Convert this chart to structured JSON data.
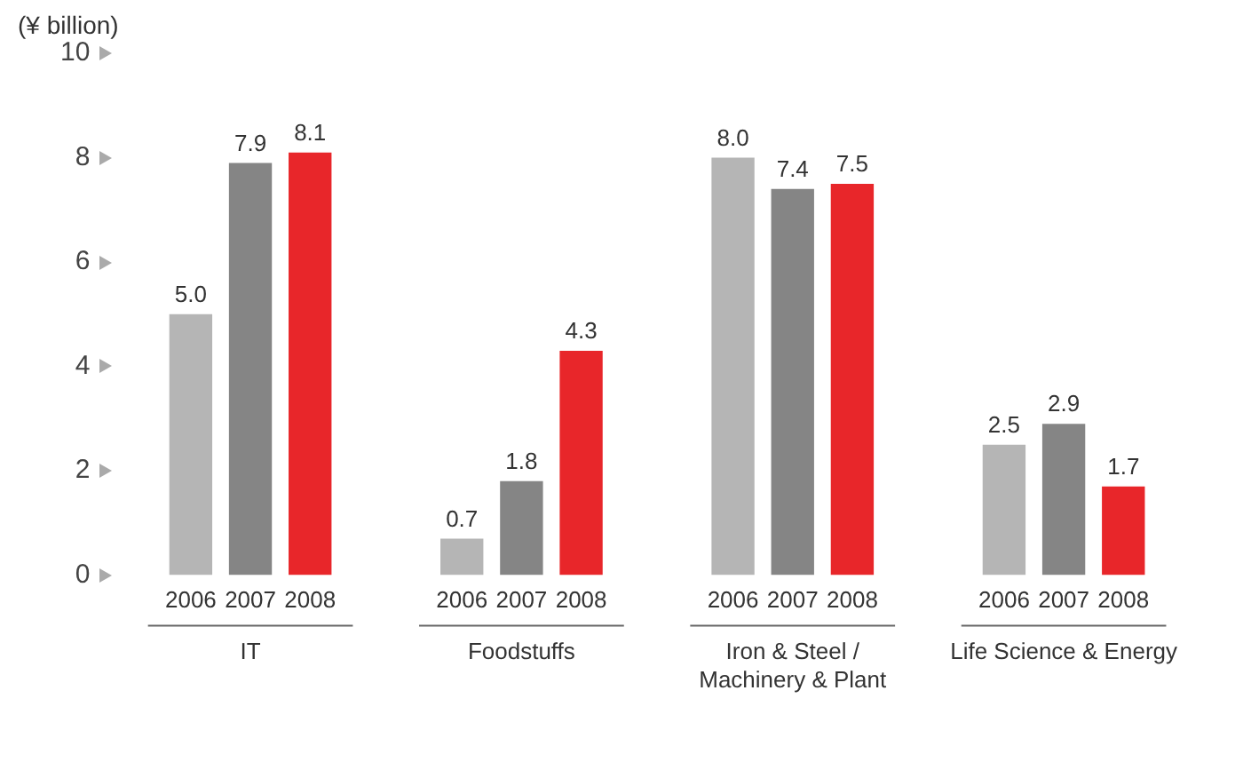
{
  "chart_data": {
    "type": "bar",
    "ylabel": "(¥ billion)",
    "categories": [
      "IT",
      "Foodstuffs",
      "Iron & Steel / Machinery & Plant",
      "Life Science & Energy"
    ],
    "series": [
      {
        "name": "2006",
        "color": "#b5b5b5",
        "values": [
          5.0,
          0.7,
          8.0,
          2.5
        ],
        "value_labels": [
          "5.0",
          "0.7",
          "8.0",
          "2.5"
        ]
      },
      {
        "name": "2007",
        "color": "#858585",
        "values": [
          7.9,
          1.8,
          7.4,
          2.9
        ],
        "value_labels": [
          "7.9",
          "1.8",
          "7.4",
          "2.9"
        ]
      },
      {
        "name": "2008",
        "color": "#e8262a",
        "values": [
          8.1,
          4.3,
          7.5,
          1.7
        ],
        "value_labels": [
          "8.1",
          "4.3",
          "7.5",
          "1.7"
        ]
      }
    ],
    "ylim": [
      0,
      10
    ],
    "yticks": [
      0,
      2,
      4,
      6,
      8,
      10
    ],
    "grid": false,
    "legend": false
  }
}
